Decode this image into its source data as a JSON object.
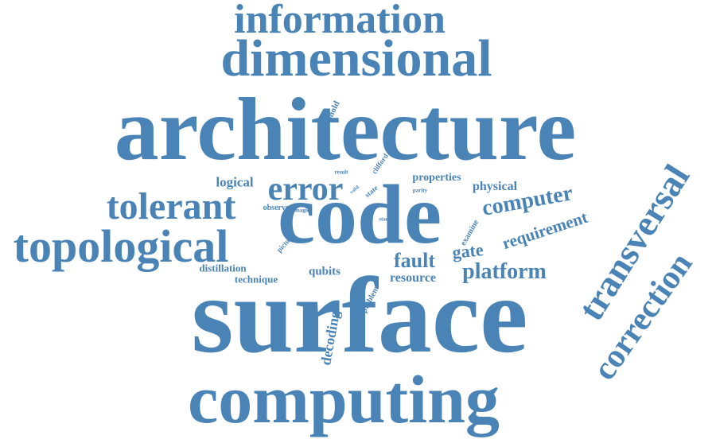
{
  "word_color": "#4a83b6",
  "words": {
    "information": "information",
    "dimensional": "dimensional",
    "architecture": "architecture",
    "threshold": "threshold",
    "clifford": "clifford",
    "result": "result",
    "logical": "logical",
    "properties": "properties",
    "physical": "physical",
    "error": "error",
    "parity": "parity",
    "state": "state",
    "valid": "valid",
    "tolerant": "tolerant",
    "computer": "computer",
    "observe": "observe",
    "magic": "magic",
    "code": "code",
    "stack": "stack",
    "requirement": "requirement",
    "examine": "examine",
    "topological": "topological",
    "picture": "picture",
    "gate": "gate",
    "transversal": "transversal",
    "fault": "fault",
    "distillation": "distillation",
    "qubits": "qubits",
    "platform": "platform",
    "technique": "technique",
    "resource": "resource",
    "problem": "problem",
    "correction": "correction",
    "surface": "surface",
    "decoding": "decoding",
    "computing": "computing"
  }
}
